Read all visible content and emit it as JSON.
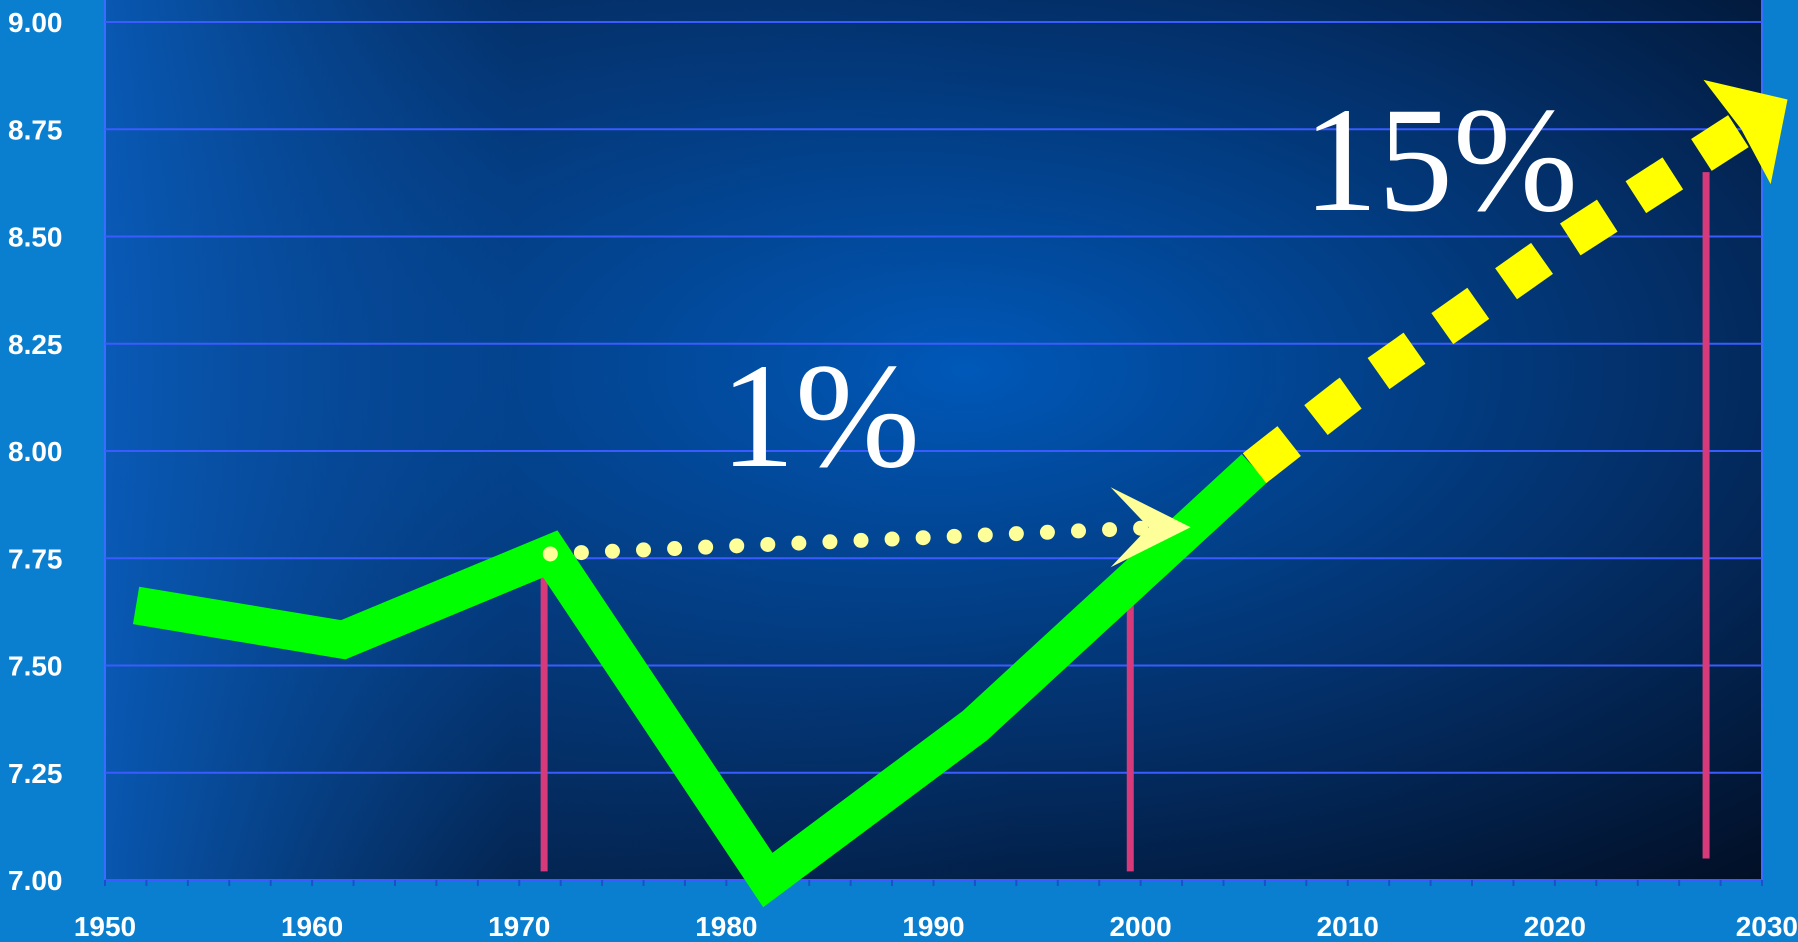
{
  "chart_data": {
    "type": "line",
    "xlim": [
      1950,
      2030
    ],
    "ylim": [
      7.0,
      9.0
    ],
    "xticks": [
      "1950",
      "1960",
      "1970",
      "1980",
      "1990",
      "2000",
      "2010",
      "2020",
      "2030"
    ],
    "yticks": [
      "9.00",
      "8.75",
      "8.50",
      "8.25",
      "8.00",
      "7.75",
      "7.50",
      "7.25",
      "7.00"
    ],
    "grid": true,
    "series": [
      {
        "style": "solid",
        "color": "#00ff00",
        "x": [
          1951.5,
          1961.5,
          1971.5,
          1982,
          1992,
          2005.5
        ],
        "y": [
          7.64,
          7.56,
          7.76,
          7.0,
          7.36,
          7.96
        ]
      },
      {
        "style": "dashed-projection",
        "color": "#ffff00",
        "x": [
          2005.5,
          2010,
          2015,
          2020,
          2029
        ],
        "y": [
          7.96,
          8.13,
          8.3,
          8.47,
          8.75
        ]
      }
    ],
    "annotations": [
      {
        "text": "1%",
        "from": [
          1971.5,
          7.76
        ],
        "to": [
          2000,
          7.82
        ],
        "color": "#ffff99",
        "style": "dotted-arrow"
      },
      {
        "text": "15%",
        "color": "#ffffff"
      }
    ],
    "marker_lines": [
      {
        "x": 1971.2,
        "y_top": 7.76,
        "y_bottom": 7.02,
        "color": "#d63a7a"
      },
      {
        "x": 1999.5,
        "y_top": 7.76,
        "y_bottom": 7.02,
        "color": "#d63a7a"
      },
      {
        "x": 2027.3,
        "y_top": 8.65,
        "y_bottom": 7.05,
        "color": "#d63a7a"
      }
    ]
  }
}
